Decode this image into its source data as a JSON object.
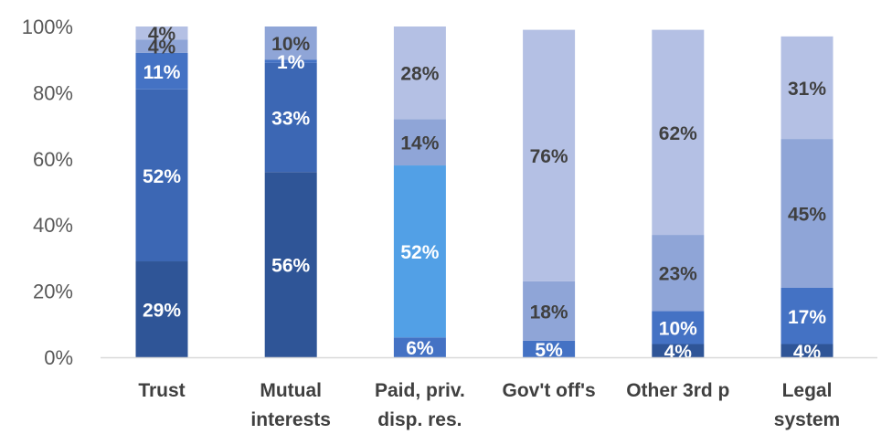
{
  "chart_data": {
    "type": "bar",
    "stacked": true,
    "percent_stacked": true,
    "categories": [
      [
        "Trust"
      ],
      [
        "Mutual",
        "interests"
      ],
      [
        "Paid, priv.",
        "disp. res."
      ],
      [
        "Gov't off's"
      ],
      [
        "Other 3rd p"
      ],
      [
        "Legal",
        "system"
      ]
    ],
    "series": [
      {
        "color": "#2f5597",
        "label_color": "#ffffff",
        "values": [
          29,
          56,
          0,
          0,
          4,
          4
        ],
        "labels": [
          "29%",
          "56%",
          "",
          "",
          "4%",
          "4%"
        ]
      },
      {
        "color": "#3c67b4",
        "label_color": "#ffffff",
        "values": [
          52,
          33,
          0,
          0,
          0,
          0
        ],
        "labels": [
          "52%",
          "33%",
          "",
          "",
          "",
          ""
        ]
      },
      {
        "color": "#4472c4",
        "label_color": "#ffffff",
        "values": [
          11,
          1,
          6,
          5,
          10,
          17
        ],
        "labels": [
          "11%",
          "1%",
          "6%",
          "5%",
          "10%",
          "17%"
        ]
      },
      {
        "color": "#52a0e6",
        "label_color": "#ffffff",
        "values": [
          0,
          0,
          52,
          0,
          0,
          0
        ],
        "labels": [
          "",
          "",
          "52%",
          "",
          "",
          ""
        ]
      },
      {
        "color": "#8fa5d7",
        "label_color": "#404040",
        "values": [
          4,
          10,
          14,
          18,
          23,
          45
        ],
        "labels": [
          "4%",
          "10%",
          "14%",
          "18%",
          "23%",
          "45%"
        ]
      },
      {
        "color": "#b4c0e4",
        "label_color": "#404040",
        "values": [
          4,
          0,
          28,
          76,
          62,
          31
        ],
        "labels": [
          "4%",
          "",
          "28%",
          "76%",
          "62%",
          "31%"
        ]
      }
    ],
    "y_ticks": [
      "0%",
      "20%",
      "40%",
      "60%",
      "80%",
      "100%"
    ],
    "ylim": [
      0,
      100
    ],
    "grid": false,
    "legend": "none"
  }
}
